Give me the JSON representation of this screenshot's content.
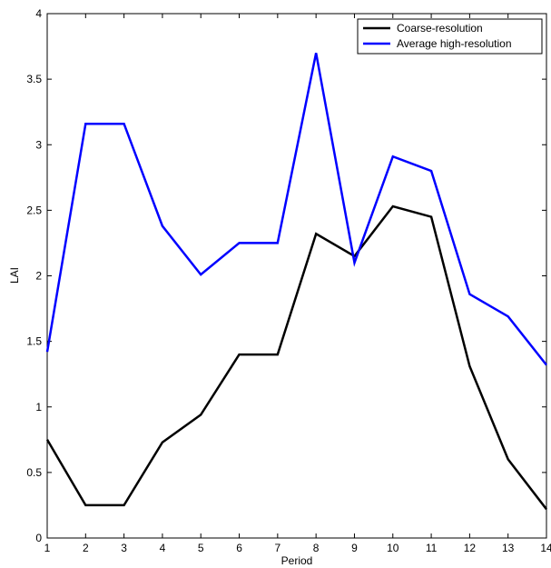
{
  "chart_data": {
    "type": "line",
    "title": "",
    "xlabel": "Period",
    "ylabel": "LAI",
    "x": [
      1,
      2,
      3,
      4,
      5,
      6,
      7,
      8,
      9,
      10,
      11,
      12,
      13,
      14
    ],
    "xlim": [
      1,
      14
    ],
    "ylim": [
      0,
      4
    ],
    "xticks": [
      "1",
      "2",
      "3",
      "4",
      "5",
      "6",
      "7",
      "8",
      "9",
      "10",
      "11",
      "12",
      "13",
      "14"
    ],
    "yticks": [
      "0",
      "0.5",
      "1",
      "1.5",
      "2",
      "2.5",
      "3",
      "3.5",
      "4"
    ],
    "grid": false,
    "legend_position": "top-right",
    "series": [
      {
        "name": "Coarse-resolution",
        "color": "#000000",
        "values": [
          0.75,
          0.25,
          0.25,
          0.73,
          0.94,
          1.4,
          1.4,
          2.32,
          2.15,
          2.53,
          2.45,
          1.31,
          0.6,
          0.22
        ]
      },
      {
        "name": "Average high-resolution",
        "color": "#0000ff",
        "values": [
          1.42,
          3.16,
          3.16,
          2.38,
          2.01,
          2.25,
          2.25,
          3.7,
          2.1,
          2.91,
          2.8,
          1.86,
          1.69,
          1.32
        ]
      }
    ]
  }
}
